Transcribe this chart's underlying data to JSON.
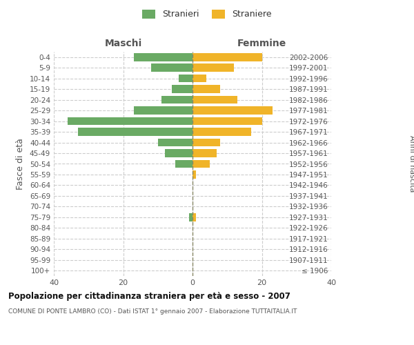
{
  "age_groups": [
    "100+",
    "95-99",
    "90-94",
    "85-89",
    "80-84",
    "75-79",
    "70-74",
    "65-69",
    "60-64",
    "55-59",
    "50-54",
    "45-49",
    "40-44",
    "35-39",
    "30-34",
    "25-29",
    "20-24",
    "15-19",
    "10-14",
    "5-9",
    "0-4"
  ],
  "birth_years": [
    "≤ 1906",
    "1907-1911",
    "1912-1916",
    "1917-1921",
    "1922-1926",
    "1927-1931",
    "1932-1936",
    "1937-1941",
    "1942-1946",
    "1947-1951",
    "1952-1956",
    "1957-1961",
    "1962-1966",
    "1967-1971",
    "1972-1976",
    "1977-1981",
    "1982-1986",
    "1987-1991",
    "1992-1996",
    "1997-2001",
    "2002-2006"
  ],
  "males": [
    0,
    0,
    0,
    0,
    0,
    1,
    0,
    0,
    0,
    0,
    5,
    8,
    10,
    33,
    36,
    17,
    9,
    6,
    4,
    12,
    17
  ],
  "females": [
    0,
    0,
    0,
    0,
    0,
    1,
    0,
    0,
    0,
    1,
    5,
    7,
    8,
    17,
    20,
    23,
    13,
    8,
    4,
    12,
    20
  ],
  "male_color": "#6aaa64",
  "female_color": "#f0b429",
  "male_label": "Stranieri",
  "female_label": "Straniere",
  "title": "Popolazione per cittadinanza straniera per età e sesso - 2007",
  "subtitle": "COMUNE DI PONTE LAMBRO (CO) - Dati ISTAT 1° gennaio 2007 - Elaborazione TUTTAITALIA.IT",
  "ylabel_left": "Fasce di età",
  "ylabel_right": "Anni di nascita",
  "maschi_label": "Maschi",
  "femmine_label": "Femmine",
  "xlim": [
    -40,
    40
  ],
  "xticks": [
    -40,
    -20,
    0,
    20,
    40
  ],
  "xticklabels": [
    "40",
    "20",
    "0",
    "20",
    "40"
  ],
  "bg_color": "#ffffff",
  "grid_color": "#cccccc"
}
